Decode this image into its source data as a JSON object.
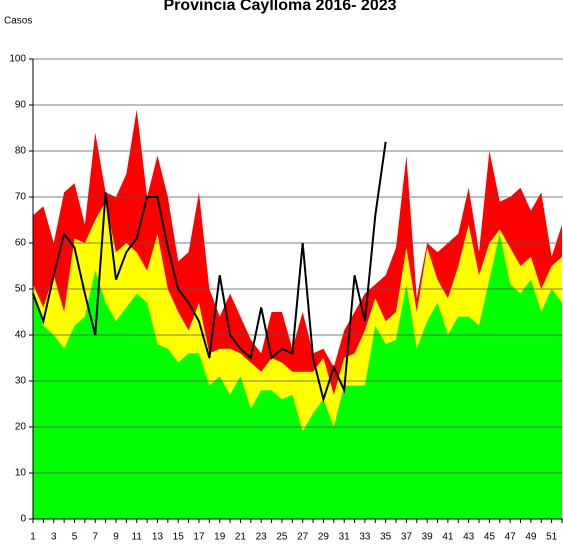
{
  "chart_data": {
    "type": "area",
    "title": "Provincia Caylloma 2016- 2023",
    "y_label": "Casos",
    "categories": [
      1,
      null,
      3,
      null,
      5,
      null,
      7,
      null,
      9,
      null,
      11,
      null,
      13,
      null,
      15,
      null,
      17,
      null,
      19,
      null,
      21,
      null,
      23,
      null,
      25,
      null,
      27,
      null,
      29,
      null,
      31,
      null,
      33,
      null,
      35,
      null,
      37,
      null,
      39,
      null,
      41,
      null,
      43,
      null,
      45,
      null,
      47,
      null,
      49,
      null,
      51,
      null
    ],
    "ylim": [
      0,
      100
    ],
    "yticks": [
      0,
      10,
      20,
      30,
      40,
      50,
      60,
      70,
      80,
      90,
      100
    ],
    "grid": true,
    "series": [
      {
        "color": "#ff0000",
        "values": [
          66,
          68,
          60,
          71,
          73,
          64,
          84,
          71,
          70,
          75,
          89,
          70,
          79,
          70,
          56,
          58,
          71,
          50,
          44,
          49,
          44,
          39,
          36,
          45,
          45,
          37,
          45,
          36,
          37,
          33,
          41,
          45,
          49,
          51,
          53,
          59,
          79,
          48,
          60,
          58,
          60,
          62,
          72,
          58,
          80,
          69,
          70,
          72,
          67,
          71,
          57,
          64
        ]
      },
      {
        "color": "#ffff00",
        "values": [
          51,
          46,
          53,
          45,
          61,
          60,
          65,
          69,
          58,
          60,
          58,
          54,
          62,
          50,
          45,
          41,
          47,
          36,
          37,
          37,
          36,
          34,
          32,
          35,
          34,
          32,
          32,
          32,
          35,
          27,
          35,
          36,
          41,
          48,
          43,
          45,
          59,
          45,
          59,
          52,
          48,
          55,
          64,
          53,
          60,
          63,
          59,
          55,
          57,
          50,
          55,
          57
        ]
      },
      {
        "color": "#00ff00",
        "values": [
          50,
          42,
          40,
          37,
          42,
          44,
          54,
          47,
          43,
          46,
          49,
          47,
          38,
          37,
          34,
          36,
          36,
          29,
          31,
          27,
          31,
          24,
          28,
          28,
          26,
          27,
          19,
          23,
          26,
          20,
          29,
          29,
          29,
          42,
          38,
          39,
          51,
          37,
          43,
          47,
          40,
          44,
          44,
          42,
          52,
          62,
          51,
          49,
          52,
          45,
          50,
          47
        ]
      },
      {
        "type": "line",
        "color": "#000000",
        "values": [
          49,
          43,
          53,
          62,
          59,
          49,
          40,
          71,
          52,
          58,
          61,
          70,
          70,
          59,
          50,
          47,
          43,
          35,
          53,
          40,
          37,
          35,
          46,
          35,
          37,
          36,
          60,
          35,
          26,
          33,
          28,
          53,
          43,
          66,
          82,
          null,
          null,
          null,
          null,
          null,
          null,
          null,
          null,
          null,
          null,
          null,
          null,
          null,
          null,
          null,
          null,
          null
        ]
      }
    ]
  }
}
